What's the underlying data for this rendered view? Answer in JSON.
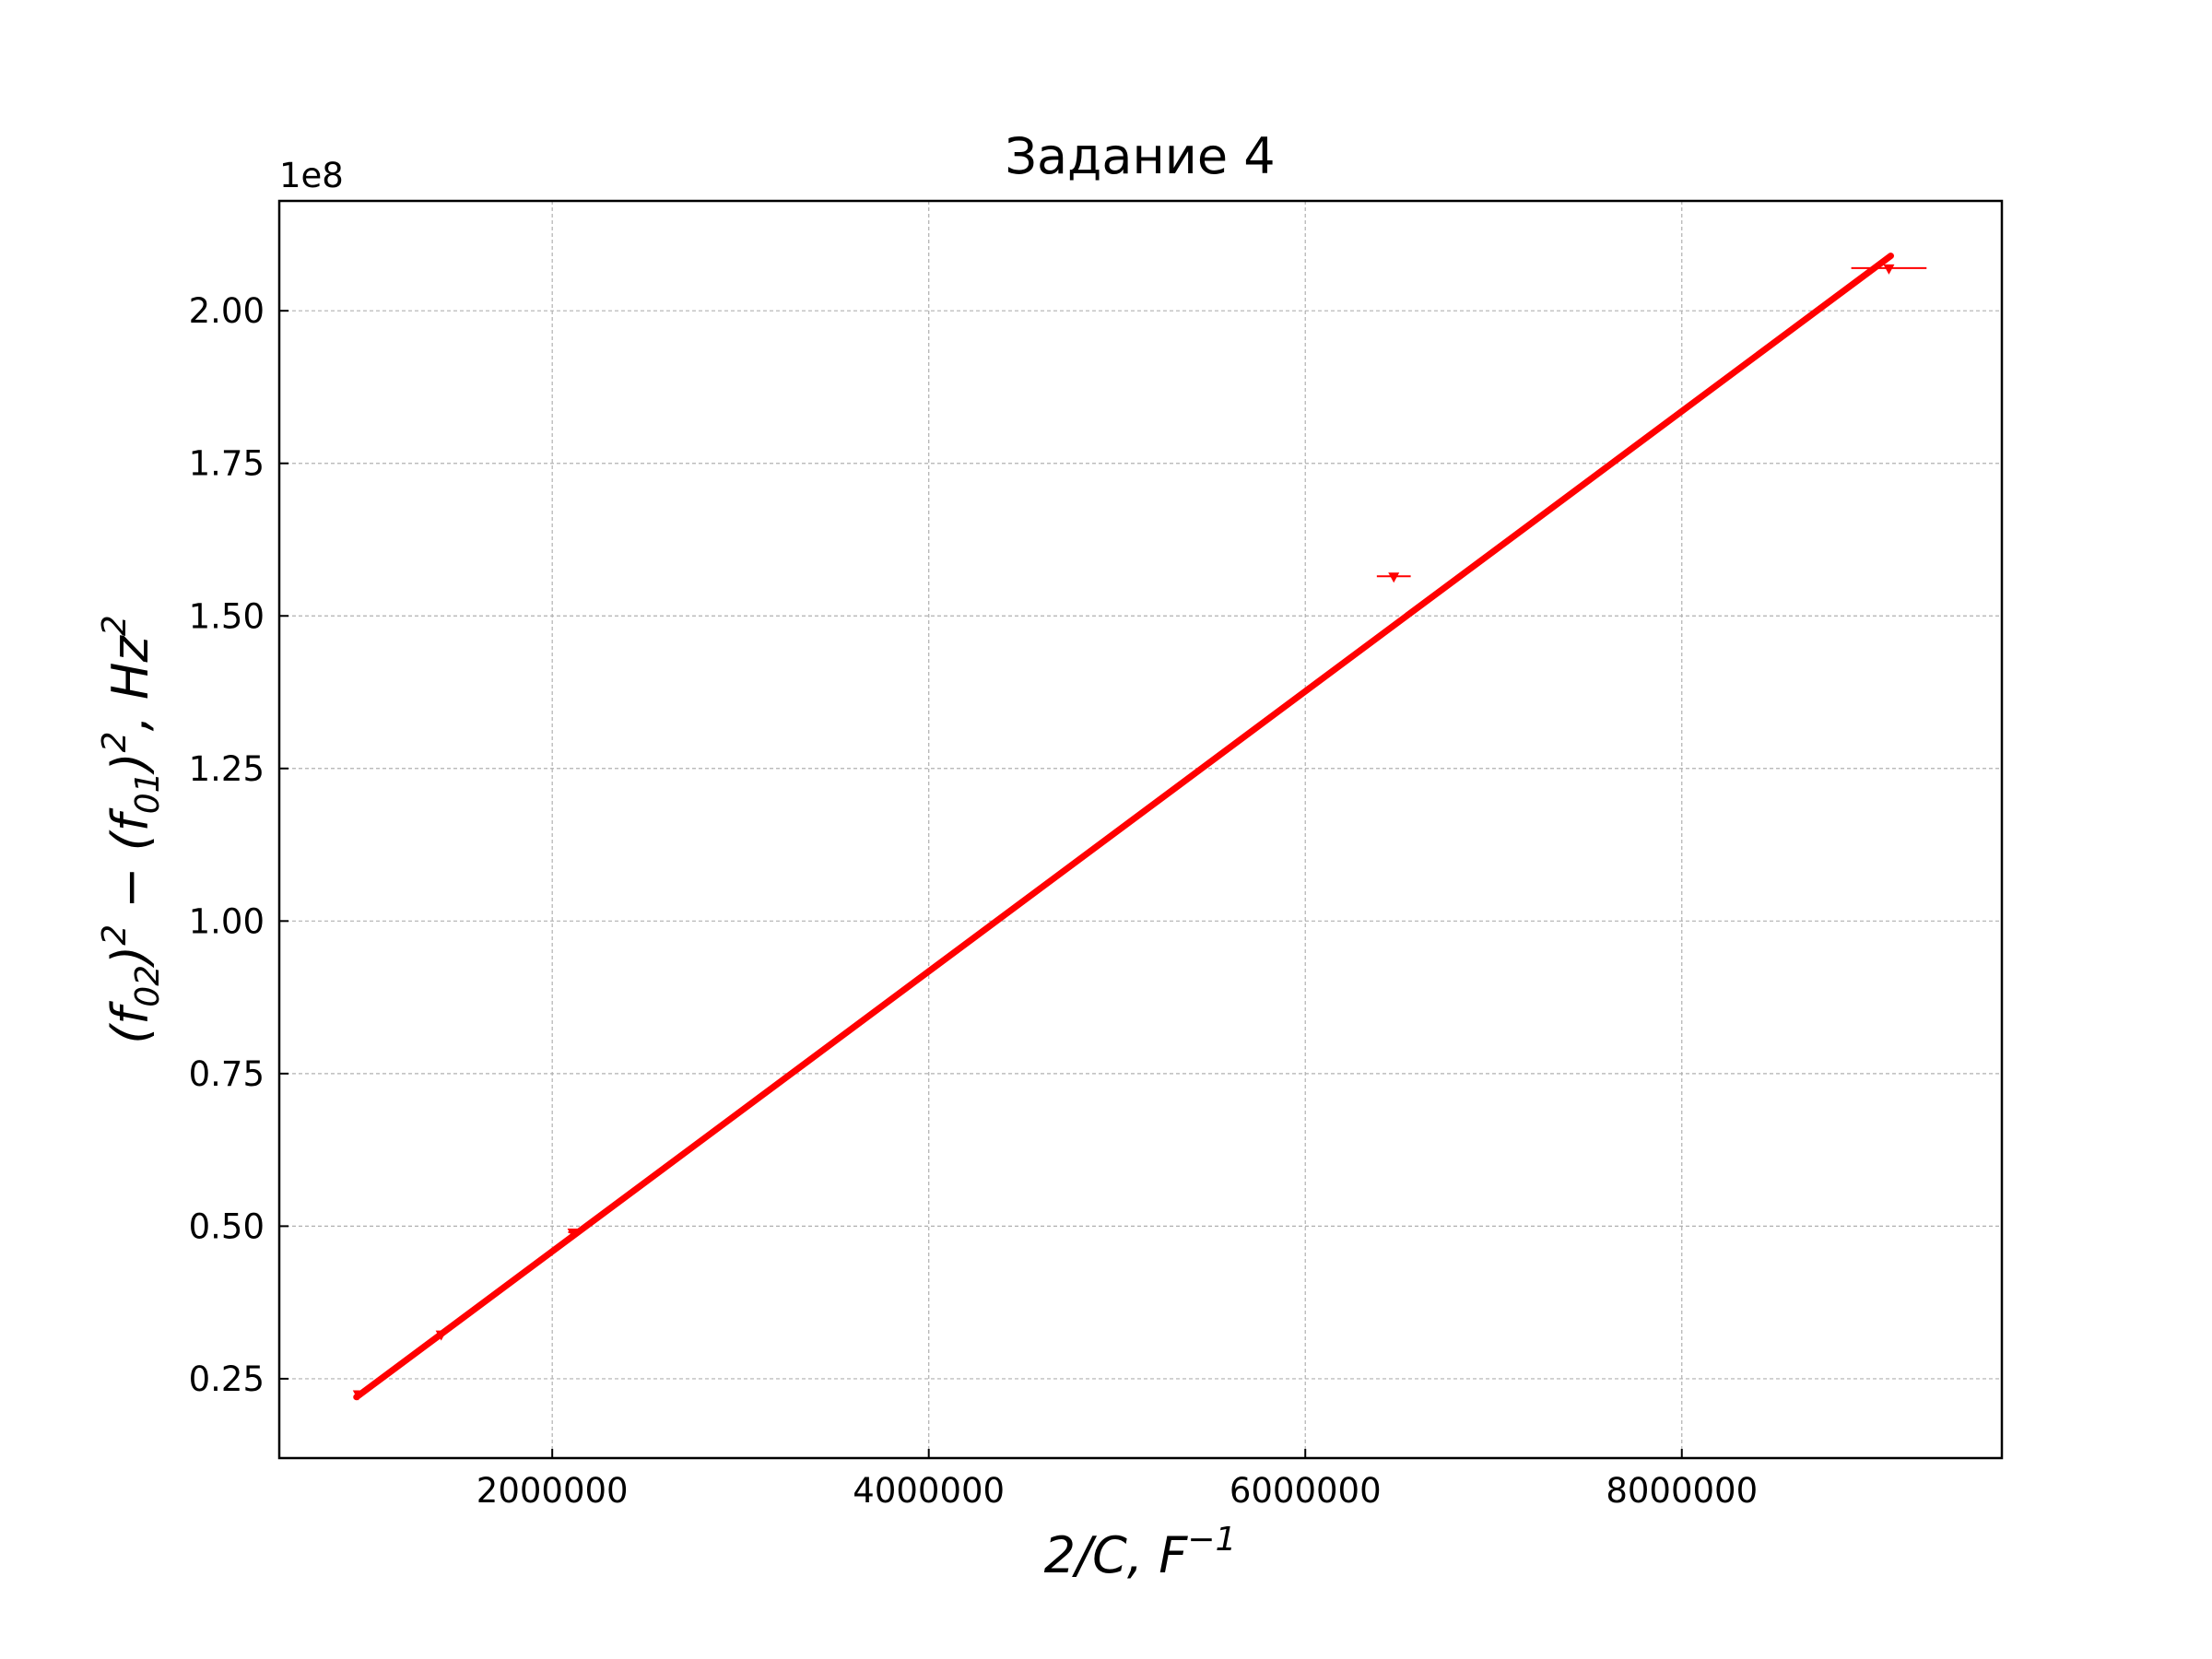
{
  "chart_data": {
    "type": "scatter",
    "title": "Задание 4",
    "xlabel": "2/C, F^{-1}",
    "ylabel": "(f_{02})^2 − (f_{01})^2, Hz^2",
    "offset_label": "1e8",
    "y_scale": 100000000,
    "xlim": [
      550000,
      9700000
    ],
    "ylim": [
      0.12,
      2.18
    ],
    "x_ticks": [
      2000000,
      4000000,
      6000000,
      8000000
    ],
    "x_tick_labels": [
      "2000000",
      "4000000",
      "6000000",
      "8000000"
    ],
    "y_ticks": [
      0.25,
      0.5,
      0.75,
      1.0,
      1.25,
      1.5,
      1.75,
      2.0
    ],
    "y_tick_labels": [
      "0.25",
      "0.50",
      "0.75",
      "1.00",
      "1.25",
      "1.50",
      "1.75",
      "2.00"
    ],
    "grid": true,
    "color": "#ff0000",
    "points": [
      {
        "x": 970000,
        "y": 0.225,
        "xerr": 10000
      },
      {
        "x": 1410000,
        "y": 0.323,
        "xerr": 15000
      },
      {
        "x": 2110000,
        "y": 0.49,
        "xerr": 25000
      },
      {
        "x": 6470000,
        "y": 1.565,
        "xerr": 90000
      },
      {
        "x": 9100000,
        "y": 2.07,
        "xerr": 200000
      }
    ],
    "fit_line": {
      "x": [
        960000,
        9110000
      ],
      "y": [
        0.22,
        2.09
      ]
    }
  }
}
